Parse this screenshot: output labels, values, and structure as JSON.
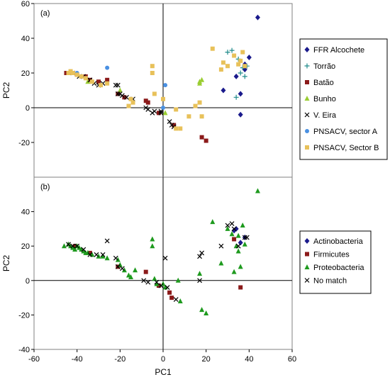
{
  "chart_data": [
    {
      "panel_label": "(a)",
      "type": "scatter",
      "xlabel": "",
      "ylabel": "PC2",
      "xlim": [
        -60,
        60
      ],
      "ylim": [
        -40,
        60
      ],
      "yticks": [
        -20,
        0,
        20,
        40,
        60
      ],
      "grid": false,
      "legend_position": "right",
      "series": [
        {
          "name": "FFR Alcochete",
          "marker": "diamond",
          "color": "#1a1a8c",
          "points": [
            [
              44,
              52
            ],
            [
              38,
              25
            ],
            [
              40,
              29
            ],
            [
              34,
              18
            ],
            [
              36,
              8
            ],
            [
              28,
              10
            ],
            [
              36,
              -4
            ],
            [
              38,
              22
            ]
          ]
        },
        {
          "name": "Torrão",
          "marker": "plus",
          "color": "#1f8a8a",
          "points": [
            [
              30,
              32
            ],
            [
              32,
              33
            ],
            [
              36,
              20
            ],
            [
              38,
              18
            ],
            [
              34,
              6
            ],
            [
              37,
              23
            ],
            [
              35,
              28
            ],
            [
              39,
              24
            ]
          ]
        },
        {
          "name": "Batão",
          "marker": "square",
          "color": "#8b1a1a",
          "points": [
            [
              -45,
              20
            ],
            [
              -42,
              20
            ],
            [
              -40,
              19
            ],
            [
              -36,
              18
            ],
            [
              -34,
              16
            ],
            [
              -30,
              15
            ],
            [
              -26,
              16
            ],
            [
              -21,
              8
            ],
            [
              -18,
              6
            ],
            [
              -8,
              4
            ],
            [
              -7,
              3
            ],
            [
              -2,
              -3
            ],
            [
              5,
              -10
            ],
            [
              18,
              -17
            ],
            [
              20,
              -19
            ]
          ]
        },
        {
          "name": "Bunho",
          "marker": "triangle",
          "color": "#9acd32",
          "points": [
            [
              17,
              14
            ],
            [
              18,
              16
            ],
            [
              17,
              15
            ],
            [
              1,
              -3
            ],
            [
              -35,
              15
            ],
            [
              -20,
              10
            ]
          ]
        },
        {
          "name": "V. Eira",
          "marker": "x",
          "color": "#000000",
          "points": [
            [
              -42,
              20
            ],
            [
              -39,
              18
            ],
            [
              -37,
              18
            ],
            [
              -34,
              16
            ],
            [
              -32,
              14
            ],
            [
              -30,
              13
            ],
            [
              -28,
              14
            ],
            [
              -22,
              13
            ],
            [
              -21,
              13
            ],
            [
              -21,
              8
            ],
            [
              -20,
              8
            ],
            [
              -19,
              7
            ],
            [
              -17,
              6
            ],
            [
              -14,
              5
            ],
            [
              -8,
              0
            ],
            [
              -7,
              -1
            ],
            [
              -5,
              -3
            ],
            [
              -4,
              -2
            ],
            [
              -1,
              -3
            ],
            [
              -1,
              -2
            ],
            [
              3,
              -8
            ],
            [
              4,
              -10
            ],
            [
              5,
              -11
            ]
          ]
        },
        {
          "name": "PNSACV, sector A",
          "marker": "circle",
          "color": "#4a90e2",
          "points": [
            [
              -40,
              20
            ],
            [
              -26,
              23
            ],
            [
              1,
              13
            ],
            [
              0,
              0
            ]
          ]
        },
        {
          "name": "PNSACV, Sector B",
          "marker": "square",
          "color": "#e8c15a",
          "points": [
            [
              -44,
              20
            ],
            [
              -43,
              21
            ],
            [
              -42,
              20
            ],
            [
              -40,
              19
            ],
            [
              -38,
              18
            ],
            [
              -36,
              17
            ],
            [
              -33,
              15
            ],
            [
              -29,
              13
            ],
            [
              -26,
              14
            ],
            [
              -16,
              1
            ],
            [
              -15,
              5
            ],
            [
              -14,
              3
            ],
            [
              -5,
              24
            ],
            [
              -5,
              20
            ],
            [
              -4,
              8
            ],
            [
              0,
              5
            ],
            [
              6,
              -1
            ],
            [
              6,
              -12
            ],
            [
              8,
              -12
            ],
            [
              12,
              -5
            ],
            [
              15,
              1
            ],
            [
              17,
              3
            ],
            [
              18,
              -5
            ],
            [
              23,
              34
            ],
            [
              27,
              22
            ],
            [
              28,
              26
            ],
            [
              30,
              24
            ],
            [
              33,
              30
            ],
            [
              35,
              25
            ],
            [
              36,
              27
            ],
            [
              37,
              32
            ],
            [
              38,
              24
            ]
          ]
        }
      ]
    },
    {
      "panel_label": "(b)",
      "type": "scatter",
      "xlabel": "PC1",
      "ylabel": "PC2",
      "xlim": [
        -60,
        60
      ],
      "ylim": [
        -40,
        60
      ],
      "xticks": [
        -60,
        -40,
        -20,
        0,
        20,
        40,
        60
      ],
      "yticks": [
        -40,
        -20,
        0,
        20,
        40
      ],
      "grid": false,
      "legend_position": "right",
      "series": [
        {
          "name": "Actinobacteria",
          "marker": "diamond",
          "color": "#1a1a8c",
          "points": [
            [
              38,
              25
            ],
            [
              34,
              30
            ],
            [
              36,
              22
            ],
            [
              33,
              29
            ]
          ]
        },
        {
          "name": "Firmicutes",
          "marker": "square",
          "color": "#8b1a1a",
          "points": [
            [
              -34,
              16
            ],
            [
              -21,
              8
            ],
            [
              -8,
              5
            ],
            [
              -2,
              -3
            ],
            [
              3,
              -7
            ],
            [
              4,
              -10
            ],
            [
              33,
              24
            ],
            [
              36,
              -4
            ],
            [
              -41,
              20
            ]
          ]
        },
        {
          "name": "Proteobacteria",
          "marker": "triangle",
          "color": "#1e9a1e",
          "points": [
            [
              -46,
              20
            ],
            [
              -44,
              21
            ],
            [
              -43,
              20
            ],
            [
              -42,
              19
            ],
            [
              -41,
              18
            ],
            [
              -40,
              20
            ],
            [
              -39,
              19
            ],
            [
              -38,
              18
            ],
            [
              -37,
              17
            ],
            [
              -36,
              16
            ],
            [
              -35,
              16
            ],
            [
              -33,
              15
            ],
            [
              -30,
              14
            ],
            [
              -28,
              14
            ],
            [
              -26,
              13
            ],
            [
              -21,
              12
            ],
            [
              -20,
              9
            ],
            [
              -18,
              6
            ],
            [
              -16,
              3
            ],
            [
              -15,
              2
            ],
            [
              -13,
              6
            ],
            [
              -5,
              24
            ],
            [
              -5,
              20
            ],
            [
              -4,
              1
            ],
            [
              -3,
              -2
            ],
            [
              0,
              -2
            ],
            [
              1,
              -4
            ],
            [
              7,
              0
            ],
            [
              8,
              -12
            ],
            [
              17,
              4
            ],
            [
              18,
              -17
            ],
            [
              20,
              -19
            ],
            [
              23,
              34
            ],
            [
              27,
              10
            ],
            [
              30,
              30
            ],
            [
              32,
              27
            ],
            [
              34,
              20
            ],
            [
              35,
              26
            ],
            [
              36,
              8
            ],
            [
              37,
              32
            ],
            [
              38,
              21
            ],
            [
              44,
              52
            ],
            [
              35,
              17
            ],
            [
              33,
              5
            ]
          ]
        },
        {
          "name": "No match",
          "marker": "x",
          "color": "#000000",
          "points": [
            [
              -44,
              21
            ],
            [
              -42,
              20
            ],
            [
              -40,
              20
            ],
            [
              -37,
              18
            ],
            [
              -34,
              15
            ],
            [
              -31,
              15
            ],
            [
              -28,
              15
            ],
            [
              -26,
              23
            ],
            [
              -22,
              13
            ],
            [
              -21,
              8
            ],
            [
              -19,
              7
            ],
            [
              -9,
              0
            ],
            [
              -7,
              -1
            ],
            [
              -3,
              -1
            ],
            [
              -1,
              -3
            ],
            [
              1,
              13
            ],
            [
              2,
              -4
            ],
            [
              6,
              -11
            ],
            [
              17,
              14
            ],
            [
              18,
              16
            ],
            [
              17,
              0
            ],
            [
              27,
              20
            ],
            [
              30,
              32
            ],
            [
              32,
              33
            ],
            [
              33,
              30
            ],
            [
              35,
              20
            ],
            [
              38,
              25
            ],
            [
              39,
              25
            ]
          ]
        }
      ]
    }
  ]
}
